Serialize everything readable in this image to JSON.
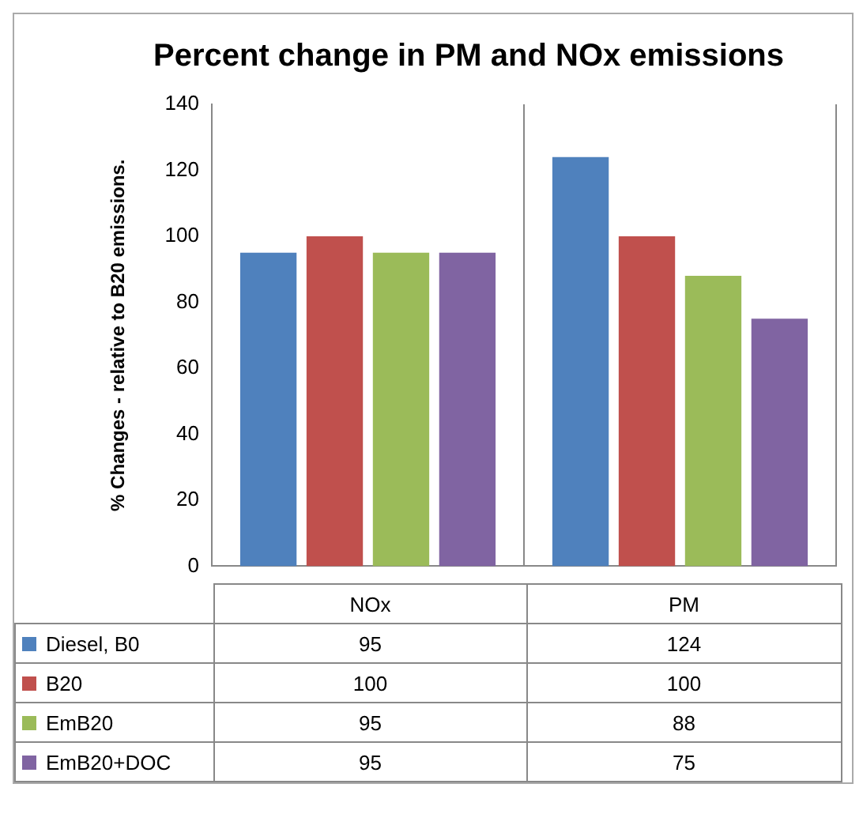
{
  "chart_data": {
    "type": "bar",
    "title": "Percent change in PM and NOx emissions",
    "ylabel": "% Changes - relative to B20 emissions.",
    "categories": [
      "NOx",
      "PM"
    ],
    "series": [
      {
        "name": "Diesel, B0",
        "color": "#4f81bd",
        "values": [
          95,
          124
        ],
        "value_labels": [
          "95",
          "124"
        ]
      },
      {
        "name": "B20",
        "color": "#c0504d",
        "values": [
          100,
          100
        ],
        "value_labels": [
          "100",
          "100"
        ]
      },
      {
        "name": "EmB20",
        "color": "#9bbb59",
        "values": [
          95,
          88
        ],
        "value_labels": [
          "95",
          "88"
        ]
      },
      {
        "name": "EmB20+DOC",
        "color": "#8064a2",
        "values": [
          95,
          75
        ],
        "value_labels": [
          "95",
          "75"
        ]
      }
    ],
    "ylim": [
      0,
      140
    ],
    "yticks": [
      0,
      20,
      40,
      60,
      80,
      100,
      120,
      140
    ],
    "grid": "x",
    "legend": "bottom"
  }
}
